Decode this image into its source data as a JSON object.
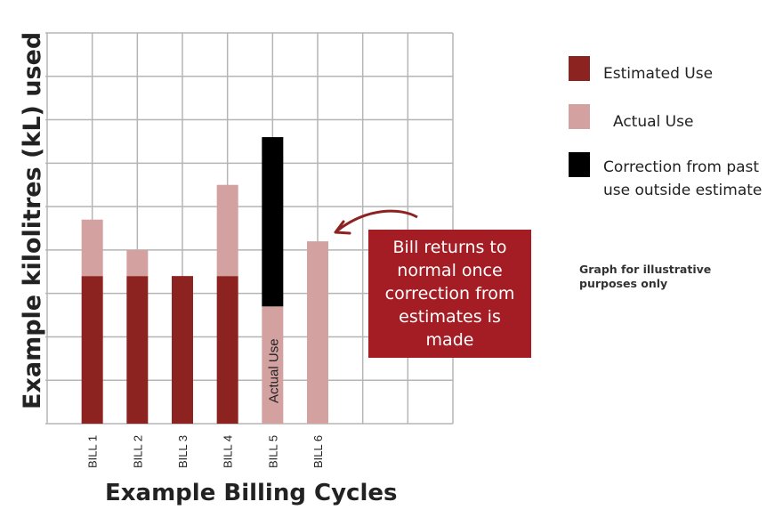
{
  "chart_data": {
    "type": "bar",
    "stacked": true,
    "categories": [
      "BILL 1",
      "BILL 2",
      "BILL 3",
      "BILL 4",
      "BILL 5",
      "BILL 6"
    ],
    "series": [
      {
        "name": "Estimated Use",
        "color": "#8c2320",
        "values": [
          3.4,
          3.4,
          3.4,
          3.4,
          0,
          0
        ]
      },
      {
        "name": "Actual Use",
        "color": "#d4a1a1",
        "values": [
          1.3,
          0.6,
          0,
          2.1,
          2.7,
          4.2
        ]
      },
      {
        "name": "Correction from past use outside estimate",
        "color": "#000000",
        "values": [
          0,
          0,
          0,
          0,
          3.9,
          0
        ]
      }
    ],
    "ylim": [
      0,
      9
    ],
    "ylabel": "Example kilolitres (kL) used",
    "xlabel": "Example Billing Cycles",
    "grid": true,
    "legend_position": "right",
    "bar_annotation": {
      "category": "BILL 5",
      "text": "Actual Use"
    }
  },
  "legend": [
    {
      "label": "Estimated Use",
      "color": "#8c2320"
    },
    {
      "label": "Actual Use",
      "color": "#d4a1a1"
    },
    {
      "label": "Correction from past use outside estimate",
      "color": "#000000"
    }
  ],
  "legend_display": [
    "Estimated Use",
    "Actual Use",
    "Correction from past use outside estimate"
  ],
  "callout": {
    "text": "Bill returns to normal once correction from estimates is made",
    "color": "#a51d24"
  },
  "note": "Graph for illustrative purposes only",
  "colors": {
    "grid": "#b5b5b5",
    "arrow": "#8c2320"
  }
}
